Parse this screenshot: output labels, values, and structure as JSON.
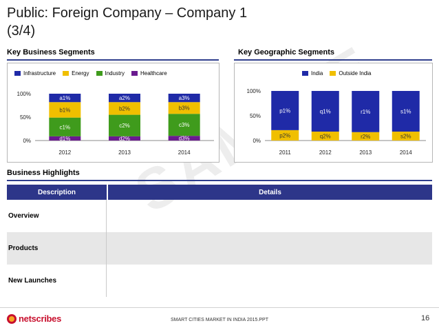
{
  "title": {
    "line1": "Public: Foreign Company – Company 1",
    "line2": "(3/4)"
  },
  "sections": {
    "segments_title": "Key Business Segments",
    "geo_title": "Key Geographic Segments",
    "highlights_title": "Business Highlights"
  },
  "colors": {
    "infrastructure": "#1f2aa7",
    "energy": "#f0bf00",
    "industry": "#3f9b1c",
    "healthcare": "#6a1a8f",
    "india": "#1f2aa7",
    "outside_india": "#f0bf00",
    "header_blue": "#2d3689"
  },
  "chart_data": [
    {
      "type": "bar",
      "stacked": true,
      "percent": true,
      "categories": [
        "2012",
        "2013",
        "2014"
      ],
      "yticks": [
        "0%",
        "50%",
        "100%"
      ],
      "ylim": [
        0,
        100
      ],
      "legend_position": "top",
      "series": [
        {
          "name": "Infrastructure",
          "color_key": "infrastructure",
          "values": [
            18,
            18,
            18
          ],
          "labels": [
            "a1%",
            "a2%",
            "a3%"
          ]
        },
        {
          "name": "Energy",
          "color_key": "energy",
          "values": [
            33,
            27,
            25
          ],
          "labels": [
            "b1%",
            "b2%",
            "b3%"
          ]
        },
        {
          "name": "Industry",
          "color_key": "industry",
          "values": [
            40,
            46,
            47
          ],
          "labels": [
            "c1%",
            "c2%",
            "c3%"
          ]
        },
        {
          "name": "Healthcare",
          "color_key": "healthcare",
          "values": [
            9,
            9,
            10
          ],
          "labels": [
            "d1%",
            "d2%",
            "d3%"
          ]
        }
      ]
    },
    {
      "type": "bar",
      "stacked": true,
      "percent": true,
      "categories": [
        "2011",
        "2012",
        "2013",
        "2014"
      ],
      "yticks": [
        "0%",
        "50%",
        "100%"
      ],
      "ylim": [
        0,
        100
      ],
      "legend_position": "top",
      "series": [
        {
          "name": "India",
          "color_key": "india",
          "values": [
            79,
            82,
            83,
            82
          ],
          "labels": [
            "p1%",
            "q1%",
            "r1%",
            "s1%"
          ]
        },
        {
          "name": "Outside India",
          "color_key": "outside_india",
          "values": [
            21,
            18,
            17,
            18
          ],
          "labels": [
            "p2%",
            "q2%",
            "r2%",
            "s2%"
          ]
        }
      ]
    }
  ],
  "table": {
    "headers": {
      "description": "Description",
      "details": "Details"
    },
    "rows": [
      {
        "label": "Overview",
        "details": ""
      },
      {
        "label": "Products",
        "details": ""
      },
      {
        "label": "New Launches",
        "details": ""
      }
    ]
  },
  "watermark": "SAMPLE",
  "footer": {
    "logo_text": "netscribes",
    "center_text": "SMART CITIES MARKET IN INDIA 2015.PPT",
    "page_number": "16"
  }
}
